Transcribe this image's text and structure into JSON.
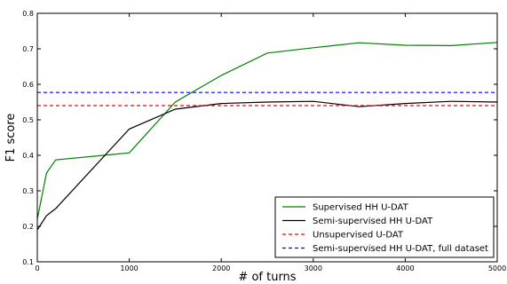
{
  "chart_data": {
    "type": "line",
    "xlabel": "# of turns",
    "ylabel": "F1 score",
    "xlim": [
      0,
      5000
    ],
    "ylim": [
      0.1,
      0.8
    ],
    "xticks": [
      0,
      1000,
      2000,
      3000,
      4000,
      5000
    ],
    "yticks": [
      0.1,
      0.2,
      0.3,
      0.4,
      0.5,
      0.6,
      0.7,
      0.8
    ],
    "xtick_labels": [
      "0",
      "1000",
      "2000",
      "3000",
      "4000",
      "5000"
    ],
    "ytick_labels": [
      "0.1",
      "0.2",
      "0.3",
      "0.4",
      "0.5",
      "0.6",
      "0.7",
      "0.8"
    ],
    "grid": false,
    "legend_position": "bottom-right",
    "series": [
      {
        "name": "Supervised HH U-DAT",
        "color": "#008000",
        "style": "solid",
        "x": [
          0,
          100,
          200,
          1000,
          1500,
          2000,
          2500,
          3000,
          3500,
          4000,
          4500,
          5000
        ],
        "y": [
          0.22,
          0.35,
          0.387,
          0.407,
          0.55,
          0.625,
          0.688,
          0.703,
          0.717,
          0.71,
          0.709,
          0.718
        ]
      },
      {
        "name": "Semi-supervised HH U-DAT",
        "color": "#000000",
        "style": "solid",
        "x": [
          0,
          50,
          100,
          200,
          1000,
          1500,
          2000,
          2500,
          3000,
          3500,
          4000,
          4500,
          5000
        ],
        "y": [
          0.19,
          0.21,
          0.23,
          0.25,
          0.474,
          0.53,
          0.546,
          0.55,
          0.552,
          0.537,
          0.546,
          0.552,
          0.55
        ]
      },
      {
        "name": "Unsupervised U-DAT",
        "color": "#ff0000",
        "style": "dashed",
        "x": [
          0,
          5000
        ],
        "y": [
          0.54,
          0.54
        ]
      },
      {
        "name": "Semi-supervised HH U-DAT, full dataset",
        "color": "#0000ff",
        "style": "dashed",
        "x": [
          0,
          5000
        ],
        "y": [
          0.577,
          0.577
        ]
      }
    ]
  }
}
